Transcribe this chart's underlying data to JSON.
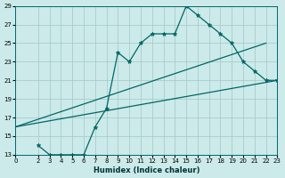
{
  "xlabel": "Humidex (Indice chaleur)",
  "ylabel": "",
  "bg_color": "#cceaea",
  "grid_color": "#aacccc",
  "line_color": "#006666",
  "xlim": [
    0,
    23
  ],
  "ylim": [
    13,
    29
  ],
  "xticks": [
    0,
    2,
    3,
    4,
    5,
    6,
    7,
    8,
    9,
    10,
    11,
    12,
    13,
    14,
    15,
    16,
    17,
    18,
    19,
    20,
    21,
    22,
    23
  ],
  "yticks": [
    13,
    15,
    17,
    19,
    21,
    23,
    25,
    27,
    29
  ],
  "line1_x": [
    2,
    3,
    4,
    5,
    6,
    7,
    8,
    9,
    10,
    11,
    12,
    13,
    14,
    15,
    16,
    17,
    18,
    19,
    20,
    21,
    22,
    23
  ],
  "line1_y": [
    14,
    13,
    13,
    13,
    13,
    16,
    18,
    24,
    23,
    25,
    26,
    26,
    26,
    29,
    28,
    27,
    26,
    25,
    23,
    22,
    21,
    21
  ],
  "line2_x": [
    0,
    22
  ],
  "line2_y": [
    16,
    25
  ],
  "line3_x": [
    0,
    23
  ],
  "line3_y": [
    16,
    21
  ]
}
